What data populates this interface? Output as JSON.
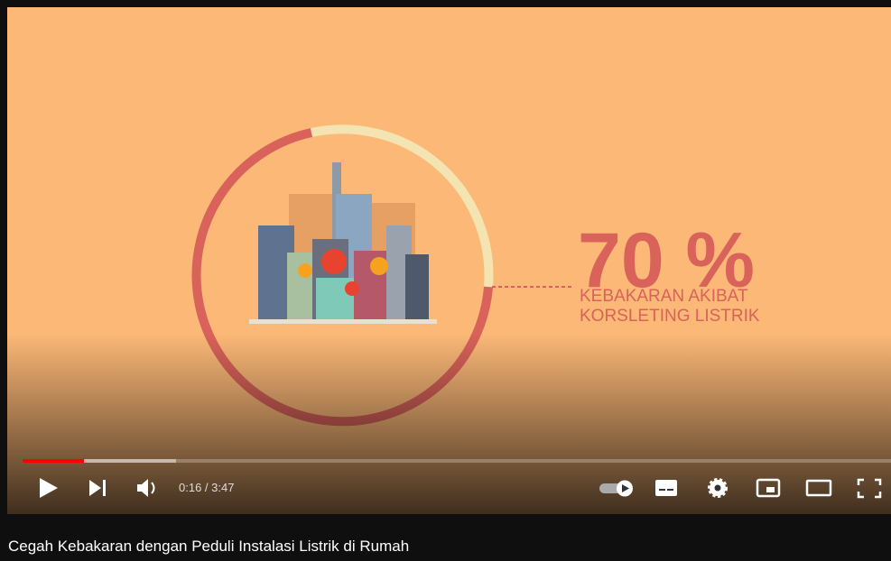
{
  "video": {
    "headline": "70 %",
    "caption": [
      "KEBAKARAN AKIBAT",
      "KORSLETING LISTRIK"
    ],
    "time": "0:16 / 3:47"
  },
  "title": "Cegah Kebakaran dengan Peduli Instalasi Listrik di Rumah"
}
